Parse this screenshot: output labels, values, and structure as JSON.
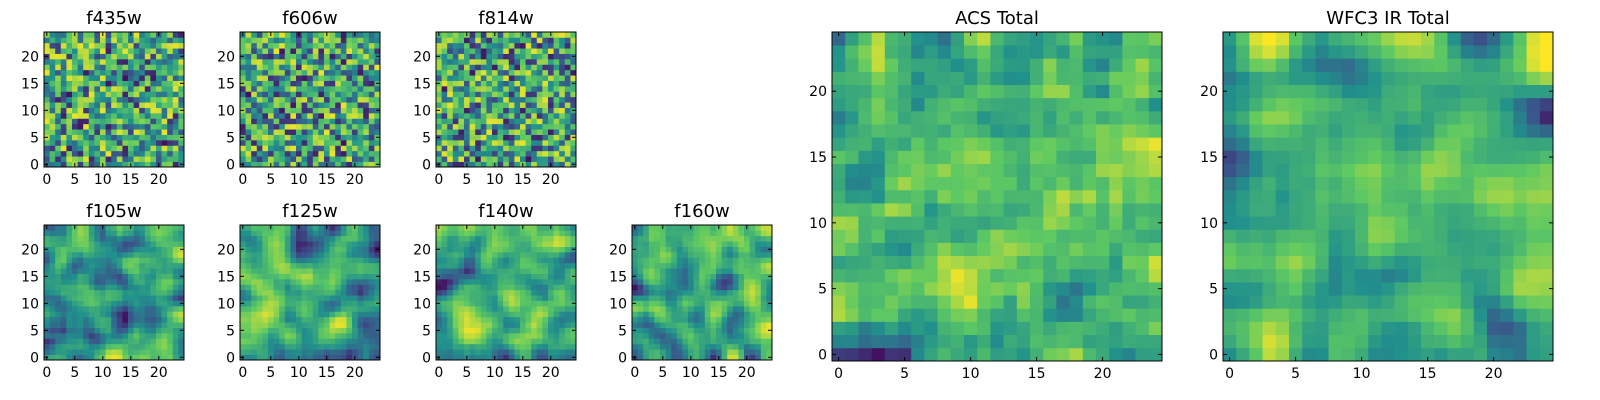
{
  "figure": {
    "colormap": "viridis",
    "colormap_stops": [
      "#440154",
      "#3b528b",
      "#21918c",
      "#5ec962",
      "#fde725"
    ],
    "frame_color": "#000000",
    "background": "#ffffff"
  },
  "chart_data": [
    {
      "type": "heatmap",
      "title": "f435w",
      "grid_size": [
        25,
        25
      ],
      "xlim": [
        -0.5,
        24.5
      ],
      "ylim": [
        -0.5,
        24.5
      ],
      "xticks": [
        0,
        5,
        10,
        15,
        20
      ],
      "yticks": [
        0,
        5,
        10,
        15,
        20
      ],
      "texture": "noisy",
      "seed": 11
    },
    {
      "type": "heatmap",
      "title": "f606w",
      "grid_size": [
        25,
        25
      ],
      "xlim": [
        -0.5,
        24.5
      ],
      "ylim": [
        -0.5,
        24.5
      ],
      "xticks": [
        0,
        5,
        10,
        15,
        20
      ],
      "yticks": [
        0,
        5,
        10,
        15,
        20
      ],
      "texture": "noisy",
      "seed": 23
    },
    {
      "type": "heatmap",
      "title": "f814w",
      "grid_size": [
        25,
        25
      ],
      "xlim": [
        -0.5,
        24.5
      ],
      "ylim": [
        -0.5,
        24.5
      ],
      "xticks": [
        0,
        5,
        10,
        15,
        20
      ],
      "yticks": [
        0,
        5,
        10,
        15,
        20
      ],
      "texture": "noisy",
      "seed": 37
    },
    {
      "type": "heatmap",
      "title": "f105w",
      "grid_size": [
        25,
        25
      ],
      "xlim": [
        -0.5,
        24.5
      ],
      "ylim": [
        -0.5,
        24.5
      ],
      "xticks": [
        0,
        5,
        10,
        15,
        20
      ],
      "yticks": [
        0,
        5,
        10,
        15,
        20
      ],
      "texture": "smooth",
      "seed": 41
    },
    {
      "type": "heatmap",
      "title": "f125w",
      "grid_size": [
        25,
        25
      ],
      "xlim": [
        -0.5,
        24.5
      ],
      "ylim": [
        -0.5,
        24.5
      ],
      "xticks": [
        0,
        5,
        10,
        15,
        20
      ],
      "yticks": [
        0,
        5,
        10,
        15,
        20
      ],
      "texture": "smooth",
      "seed": 53
    },
    {
      "type": "heatmap",
      "title": "f140w",
      "grid_size": [
        25,
        25
      ],
      "xlim": [
        -0.5,
        24.5
      ],
      "ylim": [
        -0.5,
        24.5
      ],
      "xticks": [
        0,
        5,
        10,
        15,
        20
      ],
      "yticks": [
        0,
        5,
        10,
        15,
        20
      ],
      "texture": "smooth",
      "seed": 67
    },
    {
      "type": "heatmap",
      "title": "f160w",
      "grid_size": [
        25,
        25
      ],
      "xlim": [
        -0.5,
        24.5
      ],
      "ylim": [
        -0.5,
        24.5
      ],
      "xticks": [
        0,
        5,
        10,
        15,
        20
      ],
      "yticks": [
        0,
        5,
        10,
        15,
        20
      ],
      "texture": "smooth",
      "seed": 79
    },
    {
      "type": "heatmap",
      "title": "ACS Total",
      "grid_size": [
        25,
        25
      ],
      "xlim": [
        -0.5,
        24.5
      ],
      "ylim": [
        -0.5,
        24.5
      ],
      "xticks": [
        0,
        5,
        10,
        15,
        20
      ],
      "yticks": [
        0,
        5,
        10,
        15,
        20
      ],
      "texture": "medium",
      "seed": 97
    },
    {
      "type": "heatmap",
      "title": "WFC3 IR Total",
      "grid_size": [
        25,
        25
      ],
      "xlim": [
        -0.5,
        24.5
      ],
      "ylim": [
        -0.5,
        24.5
      ],
      "xticks": [
        0,
        5,
        10,
        15,
        20
      ],
      "yticks": [
        0,
        5,
        10,
        15,
        20
      ],
      "texture": "smooth_bright",
      "seed": 113
    }
  ]
}
